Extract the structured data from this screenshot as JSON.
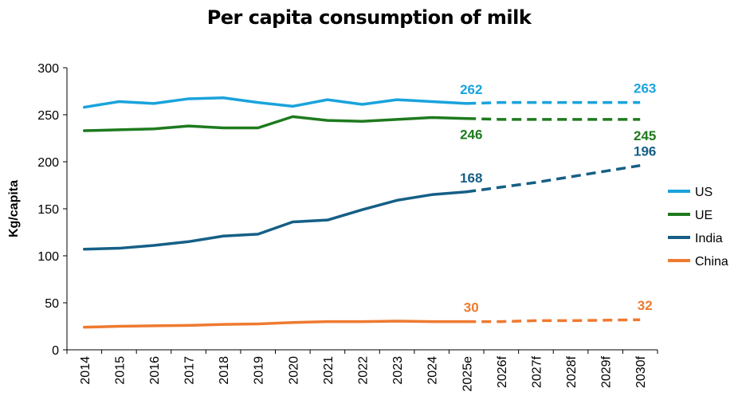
{
  "chart_data": {
    "type": "line",
    "title": "Per capita consumption of milk",
    "ylabel": "Kg/capita",
    "xlabel": "",
    "ylim": [
      0,
      300
    ],
    "yticks": [
      0,
      50,
      100,
      150,
      200,
      250,
      300
    ],
    "grid": false,
    "legend_position": "right",
    "categories": [
      "2014",
      "2015",
      "2016",
      "2017",
      "2018",
      "2019",
      "2020",
      "2021",
      "2022",
      "2023",
      "2024",
      "2025e",
      "2026f",
      "2027f",
      "2028f",
      "2029f",
      "2030f"
    ],
    "forecast_start": "2025e",
    "series": [
      {
        "name": "US",
        "color": "#1aa3dc",
        "values": [
          258,
          264,
          262,
          267,
          268,
          263,
          259,
          266,
          261,
          266,
          264,
          262,
          263,
          263,
          263,
          263,
          263
        ],
        "labels": [
          {
            "category": "2025e",
            "text": "262",
            "pos": "above"
          },
          {
            "category": "2030f",
            "text": "263",
            "pos": "above"
          }
        ]
      },
      {
        "name": "UE",
        "color": "#1e7a1e",
        "values": [
          233,
          234,
          235,
          238,
          236,
          236,
          248,
          244,
          243,
          245,
          247,
          246,
          245,
          245,
          245,
          245,
          245
        ],
        "labels": [
          {
            "category": "2025e",
            "text": "246",
            "pos": "below"
          },
          {
            "category": "2030f",
            "text": "245",
            "pos": "below"
          }
        ]
      },
      {
        "name": "India",
        "color": "#155f86",
        "values": [
          107,
          108,
          111,
          115,
          121,
          123,
          136,
          138,
          149,
          159,
          165,
          168,
          173,
          178,
          184,
          190,
          196
        ],
        "labels": [
          {
            "category": "2025e",
            "text": "168",
            "pos": "above"
          },
          {
            "category": "2030f",
            "text": "196",
            "pos": "above"
          }
        ]
      },
      {
        "name": "China",
        "color": "#ef7a30",
        "values": [
          24,
          25,
          25.5,
          26,
          27,
          27.5,
          29,
          30,
          30,
          30.5,
          30,
          30,
          30,
          31,
          31,
          31.5,
          32
        ],
        "labels": [
          {
            "category": "2025e",
            "text": "30",
            "pos": "above"
          },
          {
            "category": "2030f",
            "text": "32",
            "pos": "above"
          }
        ]
      }
    ]
  }
}
